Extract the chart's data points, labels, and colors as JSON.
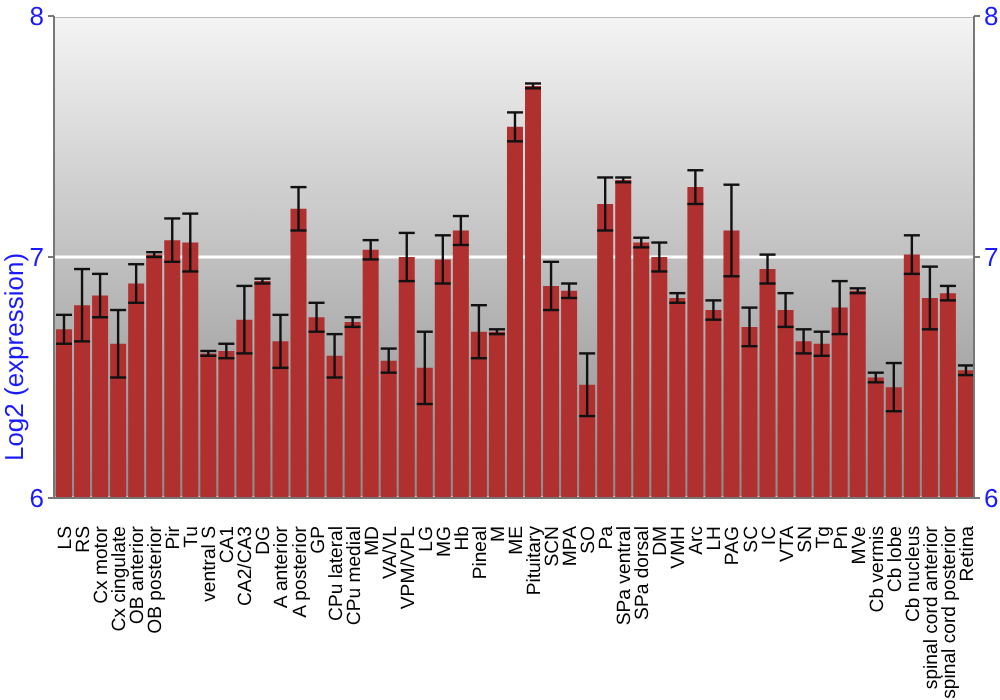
{
  "chart_data": {
    "type": "bar",
    "ylabel": "Log2 (expression)",
    "categories": [
      "LS",
      "RS",
      "Cx motor",
      "Cx cingulate",
      "OB anterior",
      "OB posterior",
      "Pir",
      "Tu",
      "ventral S",
      "CA1",
      "CA2/CA3",
      "DG",
      "A anterior",
      "A posterior",
      "GP",
      "CPu lateral",
      "CPu medial",
      "MD",
      "VA/VL",
      "VPM/VPL",
      "LG",
      "MG",
      "Hb",
      "Pineal",
      "M",
      "ME",
      "Pituitary",
      "SCN",
      "MPA",
      "SO",
      "Pa",
      "SPa ventral",
      "SPa dorsal",
      "DM",
      "VMH",
      "Arc",
      "LH",
      "PAG",
      "SC",
      "IC",
      "VTA",
      "SN",
      "Tg",
      "Pn",
      "MVe",
      "Cb vermis",
      "Cb lobe",
      "Cb nucleus",
      "spinal cord anterior",
      "spinal cord posterior",
      "Retina"
    ],
    "values": [
      6.7,
      6.8,
      6.84,
      6.64,
      6.89,
      7.01,
      7.07,
      7.06,
      6.6,
      6.61,
      6.74,
      6.9,
      6.65,
      7.2,
      6.75,
      6.59,
      6.73,
      7.03,
      6.57,
      7.0,
      6.54,
      6.99,
      7.11,
      6.69,
      6.69,
      7.54,
      7.71,
      6.88,
      6.86,
      6.47,
      7.22,
      7.32,
      7.06,
      7.0,
      6.83,
      7.29,
      6.78,
      7.11,
      6.71,
      6.95,
      6.78,
      6.65,
      6.64,
      6.79,
      6.86,
      6.5,
      6.46,
      7.01,
      6.83,
      6.85,
      6.53
    ],
    "errors": [
      0.06,
      0.15,
      0.09,
      0.14,
      0.08,
      0.01,
      0.09,
      0.12,
      0.01,
      0.03,
      0.14,
      0.01,
      0.11,
      0.09,
      0.06,
      0.09,
      0.02,
      0.04,
      0.05,
      0.1,
      0.15,
      0.1,
      0.06,
      0.11,
      0.01,
      0.06,
      0.01,
      0.1,
      0.03,
      0.13,
      0.11,
      0.01,
      0.02,
      0.06,
      0.02,
      0.07,
      0.04,
      0.19,
      0.08,
      0.06,
      0.07,
      0.05,
      0.05,
      0.11,
      0.01,
      0.02,
      0.1,
      0.08,
      0.13,
      0.03,
      0.02
    ],
    "color": "#b03030",
    "ylim": [
      6,
      8
    ],
    "yticks": [
      6,
      7,
      8
    ],
    "y2lim": [
      6,
      8
    ],
    "y2ticks": [
      6,
      7,
      8
    ],
    "grid": "y"
  }
}
